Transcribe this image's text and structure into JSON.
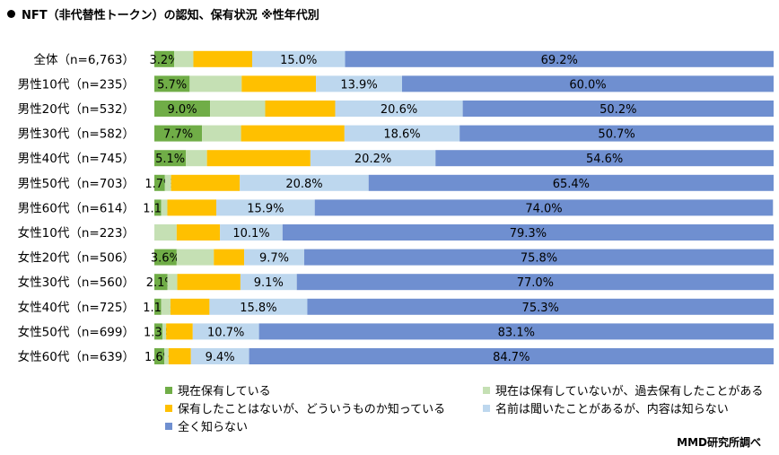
{
  "chart_data": {
    "type": "bar",
    "orientation": "horizontal",
    "stacked": "100%",
    "title": "NFT（非代替性トークン）の認知、保有状況 ※性年代別",
    "categories": [
      "全体（n=6,763）",
      "男性10代（n=235）",
      "男性20代（n=532）",
      "男性30代（n=582）",
      "男性40代（n=745）",
      "男性50代（n=703）",
      "男性60代（n=614）",
      "女性10代（n=223）",
      "女性20代（n=506）",
      "女性30代（n=560）",
      "女性40代（n=725）",
      "女性50代（n=699）",
      "女性60代（n=639）"
    ],
    "xlim": [
      0,
      100
    ],
    "legend_position": "bottom",
    "series": [
      {
        "name": "現在保有している",
        "color": "#70ad47",
        "values": [
          3.2,
          5.7,
          9.0,
          7.7,
          5.1,
          1.7,
          1.1,
          0.0,
          3.6,
          2.1,
          1.1,
          1.3,
          1.6
        ],
        "labels": [
          "3.2%",
          "5.7%",
          "9.0%",
          "7.7%",
          "5.1%",
          "1.7%",
          "1.1%",
          "",
          "3.6%",
          "2.1%",
          "1.1%",
          "1.3%",
          "1.6%"
        ]
      },
      {
        "name": "現在は保有していないが、過去保有したことがある",
        "color": "#c5e0b4",
        "values": [
          3.1,
          8.4,
          8.9,
          6.3,
          3.4,
          1.0,
          1.0,
          3.6,
          6.0,
          1.6,
          1.5,
          0.6,
          0.7
        ],
        "labels": [
          "",
          "",
          "",
          "",
          "",
          "",
          "",
          "",
          "",
          "",
          "",
          "",
          ""
        ]
      },
      {
        "name": "保有したことはないが、どういうものか知っている",
        "color": "#ffc000",
        "values": [
          9.5,
          12.0,
          11.3,
          16.7,
          16.7,
          11.1,
          7.9,
          7.0,
          4.9,
          10.2,
          6.3,
          4.3,
          3.6
        ],
        "labels": [
          "",
          "",
          "",
          "",
          "",
          "",
          "",
          "",
          "",
          "",
          "",
          "",
          ""
        ]
      },
      {
        "name": "名前は聞いたことがあるが、内容は知らない",
        "color": "#bdd7ee",
        "values": [
          15.0,
          13.9,
          20.6,
          18.6,
          20.2,
          20.8,
          15.9,
          10.1,
          9.7,
          9.1,
          15.8,
          10.7,
          9.4
        ],
        "labels": [
          "15.0%",
          "13.9%",
          "20.6%",
          "18.6%",
          "20.2%",
          "20.8%",
          "15.9%",
          "10.1%",
          "9.7%",
          "9.1%",
          "15.8%",
          "10.7%",
          "9.4%"
        ]
      },
      {
        "name": "全く知らない",
        "color": "#6f8fd0",
        "values": [
          69.2,
          60.0,
          50.2,
          50.7,
          54.6,
          65.4,
          74.0,
          79.3,
          75.8,
          77.0,
          75.3,
          83.1,
          84.7
        ],
        "labels": [
          "69.2%",
          "60.0%",
          "50.2%",
          "50.7%",
          "54.6%",
          "65.4%",
          "74.0%",
          "79.3%",
          "75.8%",
          "77.0%",
          "75.3%",
          "83.1%",
          "84.7%"
        ]
      }
    ]
  },
  "source_note": "MMD研究所調べ"
}
